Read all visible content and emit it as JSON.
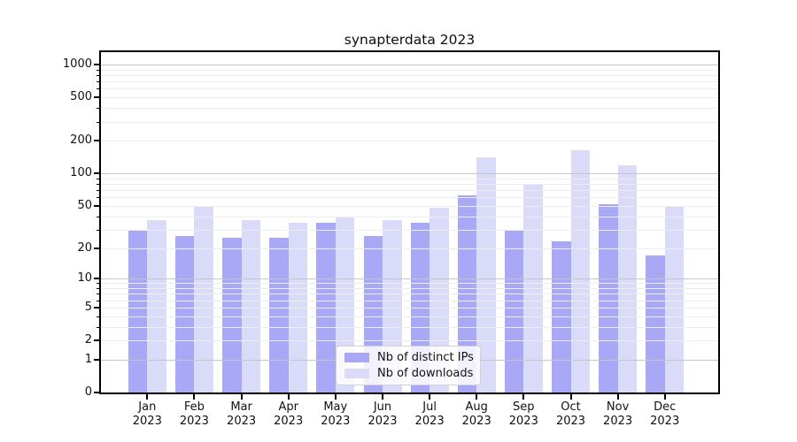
{
  "chart_data": {
    "type": "bar",
    "title": "synapterdata 2023",
    "categories": [
      "Jan",
      "Feb",
      "Mar",
      "Apr",
      "May",
      "Jun",
      "Jul",
      "Aug",
      "Sep",
      "Oct",
      "Nov",
      "Dec"
    ],
    "x_year_suffix": "2023",
    "series": [
      {
        "name": "Nb of distinct IPs",
        "color": "#a8a8f6",
        "values": [
          30,
          26,
          25,
          25,
          35,
          26,
          35,
          63,
          30,
          23,
          52,
          17
        ]
      },
      {
        "name": "Nb of downloads",
        "color": "#dadaf9",
        "values": [
          37,
          50,
          37,
          35,
          40,
          37,
          48,
          141,
          80,
          164,
          118,
          50
        ]
      }
    ],
    "y_axis": {
      "scale": "symlog",
      "ylim": [
        0,
        1300
      ],
      "ticks": [
        0,
        1,
        2,
        5,
        10,
        20,
        50,
        100,
        200,
        500,
        1000
      ],
      "major_gridlines": [
        1,
        10,
        100,
        1000
      ],
      "minor_gridlines": [
        2,
        3,
        4,
        5,
        6,
        7,
        8,
        9,
        20,
        30,
        40,
        50,
        60,
        70,
        80,
        90,
        200,
        300,
        400,
        500,
        600,
        700,
        800,
        900
      ]
    },
    "legend": {
      "position": "lower center"
    },
    "grid": true
  },
  "colors": {
    "major_grid": "#c6c6c6",
    "minor_grid": "#ededed",
    "axis": "#000000",
    "text": "#111111",
    "legend_border": "#d2d2d2"
  }
}
